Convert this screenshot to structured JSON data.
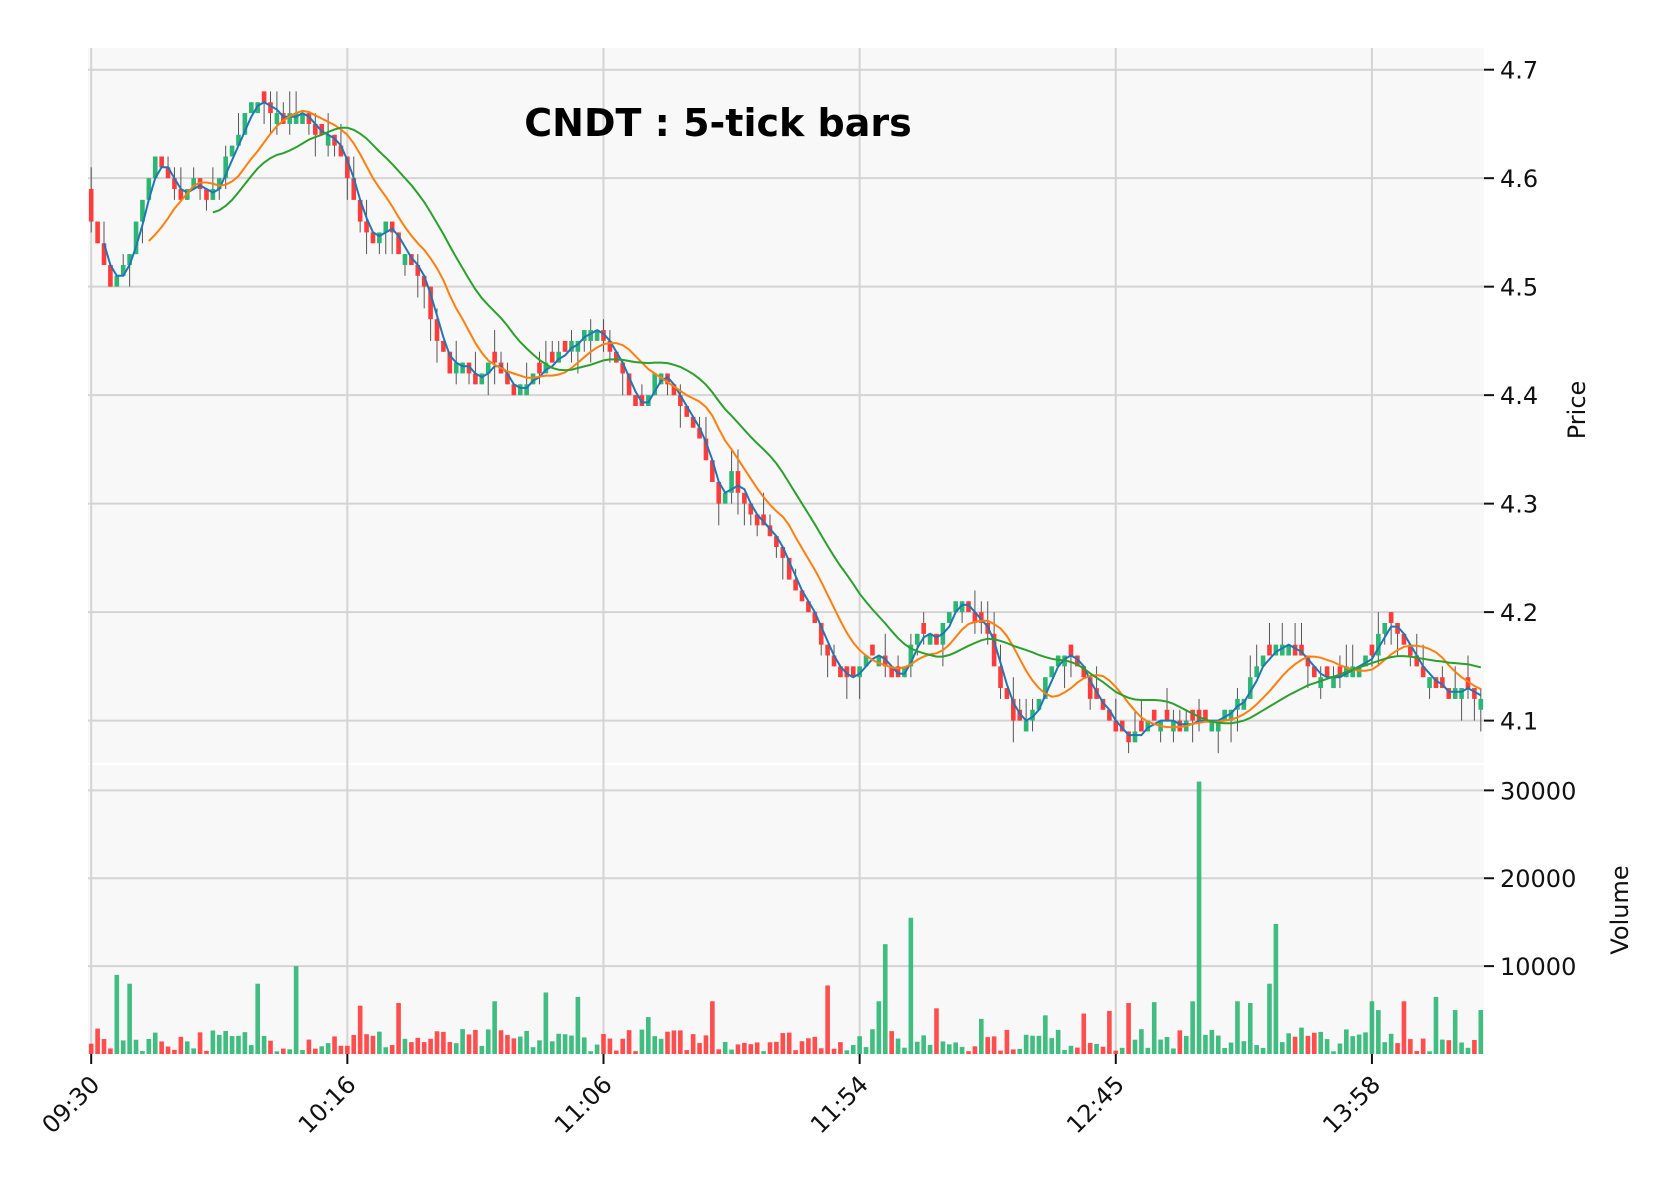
{
  "chart_data": {
    "type": "candlestick",
    "title": "CNDT : 5-tick bars",
    "price_axis": {
      "label": "Price",
      "ylim": [
        4.06,
        4.72
      ],
      "ticks": [
        4.1,
        4.2,
        4.3,
        4.4,
        4.5,
        4.6,
        4.7
      ],
      "position": "right"
    },
    "volume_axis": {
      "label": "Volume",
      "ylim": [
        0,
        33000
      ],
      "ticks": [
        10000,
        20000,
        30000
      ],
      "position": "right"
    },
    "x_axis": {
      "tick_labels": [
        "09:30",
        "10:16",
        "11:06",
        "11:54",
        "12:45",
        "13:58"
      ],
      "tick_index": [
        0,
        40,
        80,
        120,
        160,
        200
      ],
      "range": [
        0,
        217
      ]
    },
    "grid": true,
    "colors": {
      "up": "#2db673",
      "down": "#ff3b3b",
      "ma_short": "#1f77b4",
      "ma_mid": "#ff7f0e",
      "ma_long": "#2ca02c",
      "panel_bg": "#f8f8f8",
      "grid": "#d4d4d4"
    },
    "moving_averages": [
      {
        "window": 3,
        "color": "#1f77b4"
      },
      {
        "window": 10,
        "color": "#ff7f0e"
      },
      {
        "window": 20,
        "color": "#2ca02c"
      }
    ],
    "close_waypoints": [
      [
        0,
        4.56
      ],
      [
        3,
        4.5
      ],
      [
        6,
        4.53
      ],
      [
        8,
        4.58
      ],
      [
        10,
        4.62
      ],
      [
        12,
        4.6
      ],
      [
        14,
        4.58
      ],
      [
        16,
        4.6
      ],
      [
        18,
        4.58
      ],
      [
        20,
        4.6
      ],
      [
        22,
        4.63
      ],
      [
        24,
        4.66
      ],
      [
        26,
        4.67
      ],
      [
        28,
        4.66
      ],
      [
        30,
        4.65
      ],
      [
        32,
        4.66
      ],
      [
        34,
        4.65
      ],
      [
        36,
        4.64
      ],
      [
        38,
        4.63
      ],
      [
        40,
        4.6
      ],
      [
        42,
        4.56
      ],
      [
        44,
        4.54
      ],
      [
        46,
        4.56
      ],
      [
        48,
        4.53
      ],
      [
        50,
        4.52
      ],
      [
        52,
        4.5
      ],
      [
        54,
        4.45
      ],
      [
        56,
        4.42
      ],
      [
        58,
        4.43
      ],
      [
        60,
        4.41
      ],
      [
        62,
        4.43
      ],
      [
        64,
        4.42
      ],
      [
        66,
        4.4
      ],
      [
        68,
        4.41
      ],
      [
        70,
        4.42
      ],
      [
        72,
        4.43
      ],
      [
        74,
        4.44
      ],
      [
        76,
        4.45
      ],
      [
        78,
        4.46
      ],
      [
        80,
        4.45
      ],
      [
        82,
        4.43
      ],
      [
        84,
        4.4
      ],
      [
        86,
        4.39
      ],
      [
        88,
        4.42
      ],
      [
        90,
        4.41
      ],
      [
        92,
        4.39
      ],
      [
        94,
        4.37
      ],
      [
        96,
        4.34
      ],
      [
        98,
        4.3
      ],
      [
        100,
        4.33
      ],
      [
        102,
        4.3
      ],
      [
        104,
        4.28
      ],
      [
        106,
        4.27
      ],
      [
        108,
        4.25
      ],
      [
        110,
        4.22
      ],
      [
        112,
        4.2
      ],
      [
        114,
        4.17
      ],
      [
        116,
        4.15
      ],
      [
        118,
        4.14
      ],
      [
        120,
        4.15
      ],
      [
        122,
        4.16
      ],
      [
        124,
        4.15
      ],
      [
        126,
        4.14
      ],
      [
        128,
        4.17
      ],
      [
        130,
        4.18
      ],
      [
        132,
        4.17
      ],
      [
        134,
        4.2
      ],
      [
        136,
        4.21
      ],
      [
        138,
        4.19
      ],
      [
        140,
        4.18
      ],
      [
        142,
        4.13
      ],
      [
        144,
        4.1
      ],
      [
        146,
        4.1
      ],
      [
        148,
        4.12
      ],
      [
        150,
        4.15
      ],
      [
        152,
        4.16
      ],
      [
        154,
        4.15
      ],
      [
        156,
        4.12
      ],
      [
        158,
        4.11
      ],
      [
        160,
        4.09
      ],
      [
        162,
        4.08
      ],
      [
        164,
        4.09
      ],
      [
        166,
        4.1
      ],
      [
        168,
        4.1
      ],
      [
        170,
        4.09
      ],
      [
        172,
        4.1
      ],
      [
        174,
        4.1
      ],
      [
        176,
        4.1
      ],
      [
        178,
        4.11
      ],
      [
        180,
        4.12
      ],
      [
        182,
        4.15
      ],
      [
        184,
        4.16
      ],
      [
        186,
        4.17
      ],
      [
        188,
        4.16
      ],
      [
        190,
        4.15
      ],
      [
        192,
        4.14
      ],
      [
        194,
        4.14
      ],
      [
        196,
        4.15
      ],
      [
        198,
        4.15
      ],
      [
        200,
        4.16
      ],
      [
        202,
        4.19
      ],
      [
        204,
        4.18
      ],
      [
        206,
        4.16
      ],
      [
        208,
        4.14
      ],
      [
        210,
        4.13
      ],
      [
        212,
        4.12
      ],
      [
        214,
        4.13
      ],
      [
        216,
        4.12
      ],
      [
        217,
        4.12
      ]
    ],
    "volume_spikes": [
      [
        4,
        9000
      ],
      [
        6,
        8000
      ],
      [
        26,
        8000
      ],
      [
        32,
        10000
      ],
      [
        42,
        5500
      ],
      [
        48,
        5800
      ],
      [
        63,
        6000
      ],
      [
        71,
        7000
      ],
      [
        76,
        6500
      ],
      [
        87,
        4200
      ],
      [
        97,
        6000
      ],
      [
        115,
        7800
      ],
      [
        123,
        6000
      ],
      [
        124,
        12500
      ],
      [
        128,
        15500
      ],
      [
        132,
        5200
      ],
      [
        139,
        4000
      ],
      [
        149,
        4400
      ],
      [
        155,
        4600
      ],
      [
        159,
        4900
      ],
      [
        162,
        5800
      ],
      [
        166,
        5900
      ],
      [
        172,
        6000
      ],
      [
        173,
        31000
      ],
      [
        179,
        6000
      ],
      [
        181,
        5800
      ],
      [
        184,
        8000
      ],
      [
        185,
        14800
      ],
      [
        189,
        3000
      ],
      [
        200,
        6000
      ],
      [
        201,
        5000
      ],
      [
        205,
        6000
      ],
      [
        210,
        6500
      ],
      [
        213,
        5000
      ],
      [
        217,
        5000
      ]
    ]
  }
}
